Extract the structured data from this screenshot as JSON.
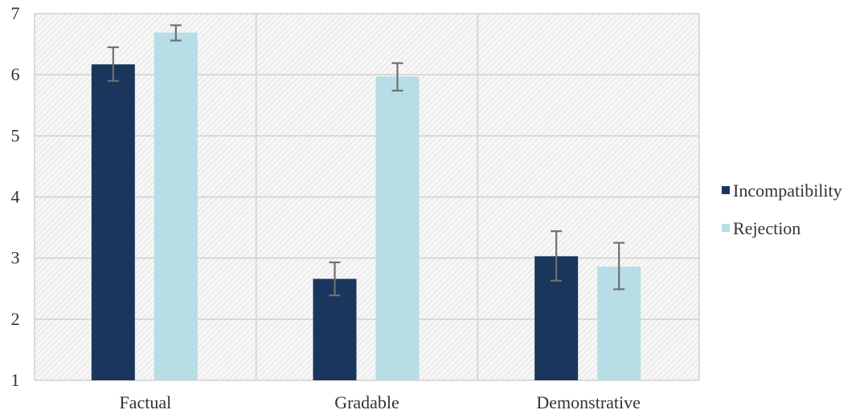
{
  "chart_data": {
    "type": "bar",
    "categories": [
      "Factual",
      "Gradable",
      "Demonstrative"
    ],
    "series": [
      {
        "name": "Incompatibility",
        "color": "#1b365d",
        "values": [
          6.17,
          2.66,
          3.03
        ],
        "error_low": [
          5.9,
          2.39,
          2.63
        ],
        "error_high": [
          6.45,
          2.93,
          3.44
        ]
      },
      {
        "name": "Rejection",
        "color": "#b7dde6",
        "values": [
          6.69,
          5.97,
          2.86
        ],
        "error_low": [
          6.56,
          5.74,
          2.49
        ],
        "error_high": [
          6.81,
          6.19,
          3.25
        ]
      }
    ],
    "title": "",
    "xlabel": "",
    "ylabel": "",
    "ylim": [
      1,
      7
    ],
    "yticks": [
      "1",
      "2",
      "3",
      "4",
      "5",
      "6",
      "7"
    ],
    "grid": true,
    "legend_position": "right",
    "plot_fill": "hatched light gray"
  }
}
